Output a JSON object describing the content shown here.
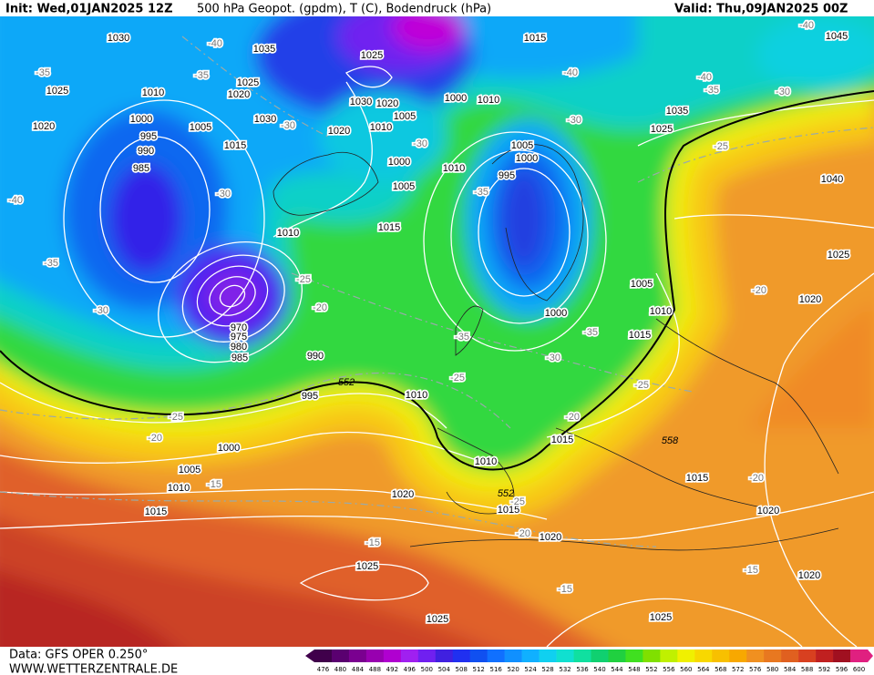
{
  "header": {
    "init": "Init: Wed,01JAN2025 12Z",
    "title": "500 hPa Geopot. (gpdm), T (C), Bodendruck (hPa)",
    "valid": "Valid: Thu,09JAN2025 00Z"
  },
  "footer": {
    "source": "Data: GFS OPER 0.250°",
    "website": "WWW.WETTERZENTRALE.DE"
  },
  "colorbar": {
    "ticks": [
      476,
      480,
      484,
      488,
      492,
      496,
      500,
      504,
      508,
      512,
      516,
      520,
      524,
      528,
      532,
      536,
      540,
      544,
      548,
      552,
      556,
      560,
      564,
      568,
      572,
      576,
      580,
      584,
      588,
      592,
      596,
      600
    ],
    "colors": [
      "#40004b",
      "#5a0070",
      "#7a0090",
      "#9800b0",
      "#b000d0",
      "#a020f0",
      "#7020f0",
      "#4020e0",
      "#2030f0",
      "#1050f0",
      "#1070ff",
      "#1090ff",
      "#10b0ff",
      "#10d0f0",
      "#10e0d0",
      "#10e0a0",
      "#10d070",
      "#20d040",
      "#40e020",
      "#80e000",
      "#c0f000",
      "#f0f000",
      "#f8d800",
      "#f8c000",
      "#f8a800",
      "#f09020",
      "#e87820",
      "#e06020",
      "#d84020",
      "#c02020",
      "#a01020",
      "#e02080"
    ]
  },
  "map_labels": {
    "pressure": [
      1030,
      1025,
      1020,
      1010,
      1000,
      995,
      990,
      985,
      1005,
      1015,
      1020,
      1025,
      1035,
      1030,
      1025,
      1030,
      1020,
      1005,
      1010,
      1020,
      1000,
      1005,
      1010,
      1015,
      1010,
      1000,
      1010,
      1005,
      1000,
      995,
      1015,
      1045,
      1035,
      1025,
      1040,
      1025,
      1020,
      1005,
      1000,
      1010,
      1015,
      990,
      995,
      985,
      980,
      975,
      970,
      1010,
      1000,
      1005,
      1010,
      1015,
      1020,
      1010,
      1015,
      1015,
      1020,
      1015,
      1020,
      1025,
      1020,
      1025,
      1025
    ],
    "temperature": [
      -40,
      -35,
      -35,
      -30,
      -30,
      -30,
      -40,
      -40,
      -35,
      -30,
      -25,
      -35,
      -30,
      -40,
      -35,
      -30,
      -25,
      -20,
      -35,
      -25,
      -35,
      -30,
      -25,
      -20,
      -20,
      -25,
      -20,
      -15,
      -15,
      -20,
      -15,
      -15,
      -20,
      -25,
      -40
    ],
    "geopotential": [
      552,
      552,
      558
    ]
  }
}
